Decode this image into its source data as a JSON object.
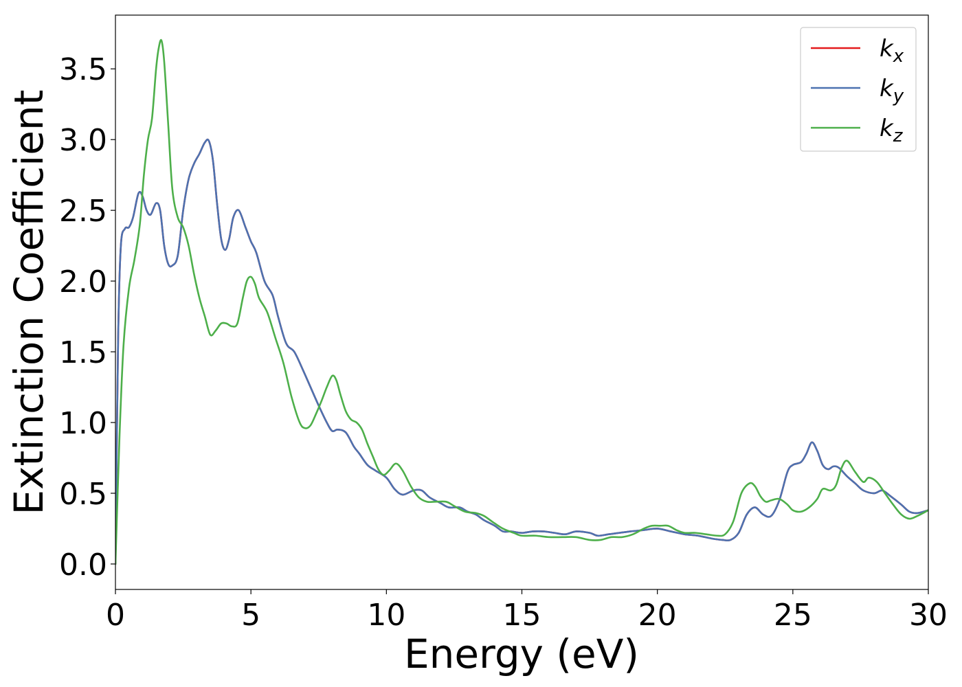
{
  "chart_data": {
    "type": "line",
    "xlabel": "Energy (eV)",
    "ylabel": "Extinction Coefficient",
    "xlim": [
      0,
      30
    ],
    "ylim": [
      -0.18,
      3.88
    ],
    "xticks": [
      0,
      5,
      10,
      15,
      20,
      25,
      30
    ],
    "xtick_labels": [
      "0",
      "5",
      "10",
      "15",
      "20",
      "25",
      "30"
    ],
    "yticks": [
      0.0,
      0.5,
      1.0,
      1.5,
      2.0,
      2.5,
      3.0,
      3.5
    ],
    "ytick_labels": [
      "0.0",
      "0.5",
      "1.0",
      "1.5",
      "2.0",
      "2.5",
      "3.0",
      "3.5"
    ],
    "grid": false,
    "legend_position": "top-right",
    "series": [
      {
        "name": "k",
        "sub": "x",
        "color": "#e41a1c",
        "x": [
          0,
          0.1,
          0.2,
          0.35,
          0.5,
          0.65,
          0.85,
          1.0,
          1.15,
          1.3,
          1.5,
          1.65,
          1.8,
          1.95,
          2.1,
          2.3,
          2.5,
          2.7,
          2.9,
          3.1,
          3.3,
          3.45,
          3.6,
          3.75,
          3.9,
          4.05,
          4.2,
          4.35,
          4.55,
          4.8,
          5.0,
          5.2,
          5.5,
          5.8,
          6.0,
          6.3,
          6.6,
          6.9,
          7.2,
          7.5,
          7.8,
          8.0,
          8.2,
          8.5,
          8.8,
          9.0,
          9.3,
          9.6,
          10.0,
          10.3,
          10.6,
          11.0,
          11.3,
          11.6,
          12.0,
          12.3,
          12.7,
          13.0,
          13.3,
          13.6,
          14.0,
          14.3,
          14.6,
          15.0,
          15.4,
          15.8,
          16.2,
          16.6,
          17.0,
          17.5,
          17.8,
          18.2,
          18.6,
          19.0,
          19.5,
          20.0,
          20.5,
          21.0,
          21.5,
          22.0,
          22.4,
          22.7,
          23.0,
          23.3,
          23.6,
          23.9,
          24.2,
          24.5,
          24.8,
          25.0,
          25.3,
          25.5,
          25.7,
          25.9,
          26.1,
          26.3,
          26.5,
          26.7,
          27.0,
          27.3,
          27.6,
          28.0,
          28.3,
          28.6,
          29.0,
          29.3,
          29.6,
          30.0
        ],
        "y": [
          0.0,
          1.6,
          2.25,
          2.37,
          2.38,
          2.45,
          2.62,
          2.6,
          2.5,
          2.47,
          2.55,
          2.5,
          2.25,
          2.12,
          2.11,
          2.18,
          2.5,
          2.72,
          2.83,
          2.9,
          2.98,
          2.99,
          2.85,
          2.55,
          2.3,
          2.22,
          2.3,
          2.45,
          2.5,
          2.38,
          2.28,
          2.2,
          2.0,
          1.9,
          1.75,
          1.56,
          1.5,
          1.38,
          1.25,
          1.12,
          1.0,
          0.94,
          0.95,
          0.93,
          0.83,
          0.78,
          0.7,
          0.66,
          0.61,
          0.53,
          0.49,
          0.52,
          0.52,
          0.47,
          0.43,
          0.4,
          0.4,
          0.37,
          0.35,
          0.31,
          0.27,
          0.23,
          0.23,
          0.22,
          0.23,
          0.23,
          0.22,
          0.21,
          0.23,
          0.22,
          0.2,
          0.21,
          0.22,
          0.23,
          0.24,
          0.25,
          0.23,
          0.21,
          0.2,
          0.18,
          0.17,
          0.17,
          0.22,
          0.35,
          0.4,
          0.35,
          0.34,
          0.45,
          0.65,
          0.7,
          0.72,
          0.78,
          0.86,
          0.8,
          0.7,
          0.67,
          0.69,
          0.68,
          0.62,
          0.57,
          0.52,
          0.5,
          0.52,
          0.48,
          0.42,
          0.37,
          0.36,
          0.38
        ]
      },
      {
        "name": "k",
        "sub": "y",
        "color": "#4c72b0",
        "x": [
          0,
          0.1,
          0.2,
          0.35,
          0.5,
          0.65,
          0.85,
          1.0,
          1.15,
          1.3,
          1.5,
          1.65,
          1.8,
          1.95,
          2.1,
          2.3,
          2.5,
          2.7,
          2.9,
          3.1,
          3.3,
          3.45,
          3.6,
          3.75,
          3.9,
          4.05,
          4.2,
          4.35,
          4.55,
          4.8,
          5.0,
          5.2,
          5.5,
          5.8,
          6.0,
          6.3,
          6.6,
          6.9,
          7.2,
          7.5,
          7.8,
          8.0,
          8.2,
          8.5,
          8.8,
          9.0,
          9.3,
          9.6,
          10.0,
          10.3,
          10.6,
          11.0,
          11.3,
          11.6,
          12.0,
          12.3,
          12.7,
          13.0,
          13.3,
          13.6,
          14.0,
          14.3,
          14.6,
          15.0,
          15.4,
          15.8,
          16.2,
          16.6,
          17.0,
          17.5,
          17.8,
          18.2,
          18.6,
          19.0,
          19.5,
          20.0,
          20.5,
          21.0,
          21.5,
          22.0,
          22.4,
          22.7,
          23.0,
          23.3,
          23.6,
          23.9,
          24.2,
          24.5,
          24.8,
          25.0,
          25.3,
          25.5,
          25.7,
          25.9,
          26.1,
          26.3,
          26.5,
          26.7,
          27.0,
          27.3,
          27.6,
          28.0,
          28.3,
          28.6,
          29.0,
          29.3,
          29.6,
          30.0
        ],
        "y": [
          0.0,
          1.6,
          2.25,
          2.37,
          2.38,
          2.45,
          2.62,
          2.6,
          2.5,
          2.47,
          2.55,
          2.5,
          2.25,
          2.12,
          2.11,
          2.18,
          2.5,
          2.72,
          2.83,
          2.9,
          2.98,
          2.99,
          2.85,
          2.55,
          2.3,
          2.22,
          2.3,
          2.45,
          2.5,
          2.38,
          2.28,
          2.2,
          2.0,
          1.9,
          1.75,
          1.56,
          1.5,
          1.38,
          1.25,
          1.12,
          1.0,
          0.94,
          0.95,
          0.93,
          0.83,
          0.78,
          0.7,
          0.66,
          0.61,
          0.53,
          0.49,
          0.52,
          0.52,
          0.47,
          0.43,
          0.4,
          0.4,
          0.37,
          0.35,
          0.31,
          0.27,
          0.23,
          0.23,
          0.22,
          0.23,
          0.23,
          0.22,
          0.21,
          0.23,
          0.22,
          0.2,
          0.21,
          0.22,
          0.23,
          0.24,
          0.25,
          0.23,
          0.21,
          0.2,
          0.18,
          0.17,
          0.17,
          0.22,
          0.35,
          0.4,
          0.35,
          0.34,
          0.45,
          0.65,
          0.7,
          0.72,
          0.78,
          0.86,
          0.8,
          0.7,
          0.67,
          0.69,
          0.68,
          0.62,
          0.57,
          0.52,
          0.5,
          0.52,
          0.48,
          0.42,
          0.37,
          0.36,
          0.38
        ]
      },
      {
        "name": "k",
        "sub": "z",
        "color": "#4daf4a",
        "x": [
          0,
          0.15,
          0.3,
          0.5,
          0.7,
          0.9,
          1.05,
          1.2,
          1.35,
          1.5,
          1.6,
          1.7,
          1.8,
          1.95,
          2.1,
          2.3,
          2.5,
          2.7,
          2.9,
          3.1,
          3.3,
          3.5,
          3.7,
          3.9,
          4.1,
          4.3,
          4.5,
          4.7,
          4.85,
          5.0,
          5.15,
          5.3,
          5.6,
          5.9,
          6.2,
          6.5,
          6.8,
          7.0,
          7.2,
          7.4,
          7.6,
          7.8,
          8.0,
          8.15,
          8.3,
          8.5,
          8.7,
          8.9,
          9.1,
          9.3,
          9.5,
          9.7,
          9.9,
          10.1,
          10.35,
          10.6,
          10.9,
          11.2,
          11.5,
          11.8,
          12.2,
          12.5,
          12.9,
          13.3,
          13.6,
          13.9,
          14.3,
          14.7,
          15.0,
          15.5,
          16.0,
          16.5,
          17.0,
          17.5,
          17.9,
          18.3,
          18.7,
          19.1,
          19.5,
          19.8,
          20.1,
          20.4,
          20.7,
          21.0,
          21.4,
          21.8,
          22.2,
          22.5,
          22.8,
          23.1,
          23.4,
          23.6,
          23.8,
          24.0,
          24.2,
          24.5,
          24.8,
          25.0,
          25.3,
          25.6,
          25.9,
          26.1,
          26.4,
          26.6,
          26.8,
          27.0,
          27.3,
          27.6,
          27.8,
          28.1,
          28.4,
          28.7,
          29.0,
          29.3,
          29.6,
          30.0
        ],
        "y": [
          0.0,
          0.9,
          1.55,
          1.95,
          2.15,
          2.4,
          2.75,
          3.0,
          3.15,
          3.5,
          3.65,
          3.7,
          3.55,
          3.1,
          2.65,
          2.45,
          2.38,
          2.25,
          2.05,
          1.88,
          1.75,
          1.62,
          1.65,
          1.7,
          1.7,
          1.68,
          1.7,
          1.88,
          2.0,
          2.03,
          1.98,
          1.88,
          1.78,
          1.6,
          1.42,
          1.18,
          1.0,
          0.96,
          0.98,
          1.06,
          1.15,
          1.25,
          1.33,
          1.3,
          1.2,
          1.08,
          1.02,
          1.0,
          0.95,
          0.85,
          0.76,
          0.67,
          0.63,
          0.66,
          0.71,
          0.66,
          0.55,
          0.47,
          0.44,
          0.44,
          0.44,
          0.41,
          0.37,
          0.36,
          0.34,
          0.3,
          0.25,
          0.22,
          0.2,
          0.2,
          0.19,
          0.19,
          0.19,
          0.17,
          0.17,
          0.19,
          0.19,
          0.21,
          0.25,
          0.27,
          0.27,
          0.27,
          0.24,
          0.22,
          0.22,
          0.21,
          0.2,
          0.21,
          0.3,
          0.5,
          0.57,
          0.55,
          0.48,
          0.44,
          0.45,
          0.46,
          0.42,
          0.38,
          0.37,
          0.4,
          0.46,
          0.53,
          0.52,
          0.56,
          0.68,
          0.73,
          0.65,
          0.58,
          0.61,
          0.58,
          0.5,
          0.42,
          0.35,
          0.32,
          0.34,
          0.38
        ]
      }
    ]
  }
}
